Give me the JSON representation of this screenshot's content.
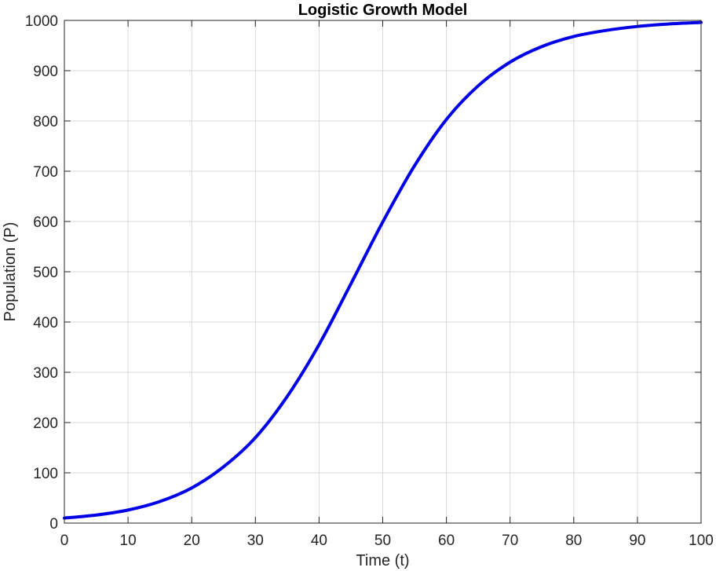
{
  "chart_data": {
    "type": "line",
    "title": "Logistic Growth Model",
    "xlabel": "Time (t)",
    "ylabel": "Population (P)",
    "xlim": [
      0,
      100
    ],
    "ylim": [
      0,
      1000
    ],
    "xticks": [
      "0",
      "10",
      "20",
      "30",
      "40",
      "50",
      "60",
      "70",
      "80",
      "90",
      "100"
    ],
    "yticks": [
      "0",
      "100",
      "200",
      "300",
      "400",
      "500",
      "600",
      "700",
      "800",
      "900",
      "1000"
    ],
    "grid": true,
    "legend": "none",
    "series": [
      {
        "color": "#0000e6",
        "x": [
          0,
          5,
          10,
          15,
          20,
          25,
          30,
          35,
          40,
          45,
          50,
          55,
          60,
          65,
          70,
          75,
          80,
          85,
          90,
          95,
          100
        ],
        "y": [
          10,
          16,
          26,
          43,
          70,
          112,
          170,
          252,
          355,
          476,
          599,
          711,
          803,
          870,
          917,
          948,
          968,
          980,
          988,
          993,
          996
        ]
      }
    ]
  }
}
